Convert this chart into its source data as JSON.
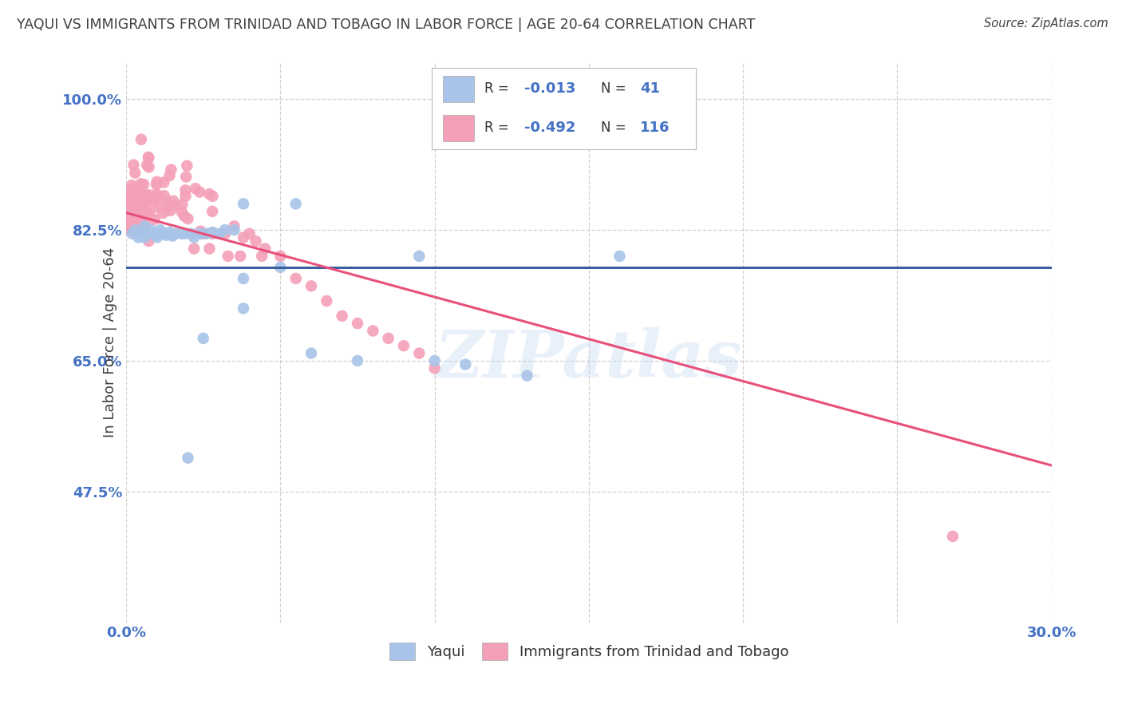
{
  "title": "YAQUI VS IMMIGRANTS FROM TRINIDAD AND TOBAGO IN LABOR FORCE | AGE 20-64 CORRELATION CHART",
  "source": "Source: ZipAtlas.com",
  "ylabel": "In Labor Force | Age 20-64",
  "x_min": 0.0,
  "x_max": 0.3,
  "y_min": 0.3,
  "y_max": 1.05,
  "blue_color": "#a8c4e8",
  "pink_color": "#f4a0b8",
  "blue_line_color": "#3a5fa0",
  "pink_line_color": "#e8507a",
  "background_color": "#ffffff",
  "grid_color": "#cccccc",
  "title_color": "#404040",
  "axis_label_color": "#4472c4",
  "watermark": "ZIPatlas",
  "blue_line_y0": 0.775,
  "blue_line_y1": 0.775,
  "pink_line_y0": 0.848,
  "pink_line_y1": 0.51
}
